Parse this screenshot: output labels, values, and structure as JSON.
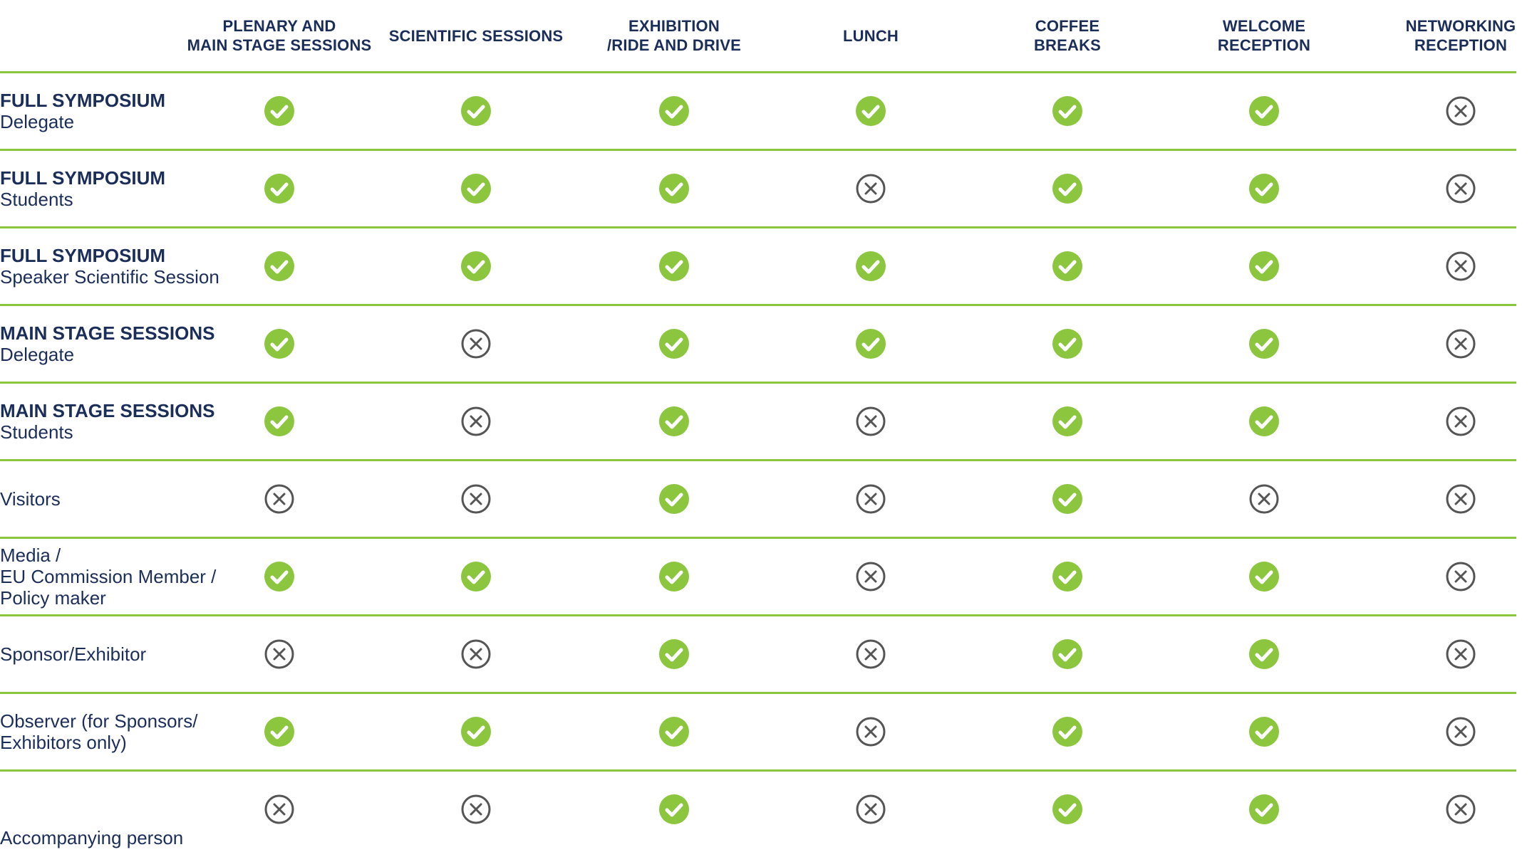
{
  "columns": [
    "PLENARY AND\nMAIN STAGE SESSIONS",
    "SCIENTIFIC SESSIONS",
    "EXHIBITION\n/RIDE AND DRIVE",
    "LUNCH",
    "COFFEE\nBREAKS",
    "WELCOME\nRECEPTION",
    "NETWORKING\nRECEPTION"
  ],
  "rows": [
    {
      "title": "FULL SYMPOSIUM",
      "sub": "Delegate",
      "cells": [
        "yes",
        "yes",
        "yes",
        "yes",
        "yes",
        "yes",
        "no"
      ]
    },
    {
      "title": "FULL SYMPOSIUM",
      "sub": "Students",
      "cells": [
        "yes",
        "yes",
        "yes",
        "no",
        "yes",
        "yes",
        "no"
      ]
    },
    {
      "title": "FULL SYMPOSIUM",
      "sub": "Speaker Scientific Session",
      "cells": [
        "yes",
        "yes",
        "yes",
        "yes",
        "yes",
        "yes",
        "no"
      ]
    },
    {
      "title": "MAIN STAGE SESSIONS",
      "sub": "Delegate",
      "cells": [
        "yes",
        "no",
        "yes",
        "yes",
        "yes",
        "yes",
        "no"
      ]
    },
    {
      "title": "MAIN STAGE SESSIONS",
      "sub": "Students",
      "cells": [
        "yes",
        "no",
        "yes",
        "no",
        "yes",
        "yes",
        "no"
      ]
    },
    {
      "title": "",
      "sub": "Visitors",
      "cells": [
        "no",
        "no",
        "yes",
        "no",
        "yes",
        "no",
        "no"
      ]
    },
    {
      "title": "",
      "sub": "Media /\nEU Commission Member /\nPolicy maker",
      "cells": [
        "yes",
        "yes",
        "yes",
        "no",
        "yes",
        "yes",
        "no"
      ]
    },
    {
      "title": "",
      "sub": "Sponsor/Exhibitor",
      "cells": [
        "no",
        "no",
        "yes",
        "no",
        "yes",
        "yes",
        "no"
      ]
    },
    {
      "title": "",
      "sub": "Observer (for Sponsors/\nExhibitors only)",
      "cells": [
        "yes",
        "yes",
        "yes",
        "no",
        "yes",
        "yes",
        "no"
      ]
    },
    {
      "title": "",
      "sub": "Accompanying person",
      "cells": [
        "no",
        "no",
        "yes",
        "no",
        "yes",
        "yes",
        "no"
      ]
    }
  ],
  "colors": {
    "accent": "#8cc63f",
    "text": "#1b2e5a",
    "cross": "#555555"
  },
  "icons": {
    "yes": "check-circle-icon",
    "no": "cross-circle-icon"
  }
}
